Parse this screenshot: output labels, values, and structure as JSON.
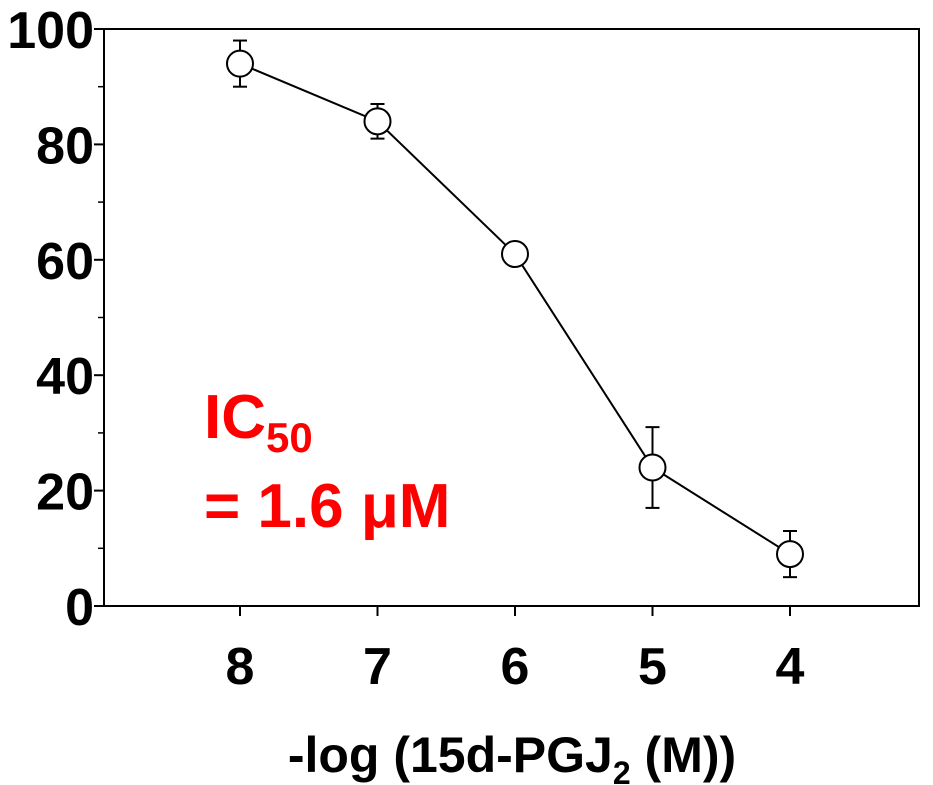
{
  "chart_data": {
    "type": "line",
    "title": "",
    "ylabel": "",
    "xlabel": {
      "prefix": "-log (15d-PGJ",
      "subscript": "2",
      "suffix": "  (M))"
    },
    "x": [
      8,
      7,
      6,
      5,
      4
    ],
    "x_tick_labels": [
      "8",
      "7",
      "6",
      "5",
      "4"
    ],
    "xlim": [
      9,
      3
    ],
    "ylim": [
      0,
      100
    ],
    "y_ticks": [
      0,
      20,
      40,
      60,
      80,
      100
    ],
    "y_tick_labels": [
      "0",
      "20",
      "40",
      "60",
      "80",
      "100"
    ],
    "series": [
      {
        "values": [
          94,
          84,
          61,
          24,
          9
        ],
        "error": [
          4,
          3,
          0,
          7,
          4
        ],
        "marker": "open-circle",
        "color": "#000000"
      }
    ],
    "annotation": {
      "line1_main": "IC",
      "line1_sub": "50",
      "line2": "= 1.6 μM",
      "color": "#ff0000"
    },
    "grid": false,
    "legend": "none"
  }
}
